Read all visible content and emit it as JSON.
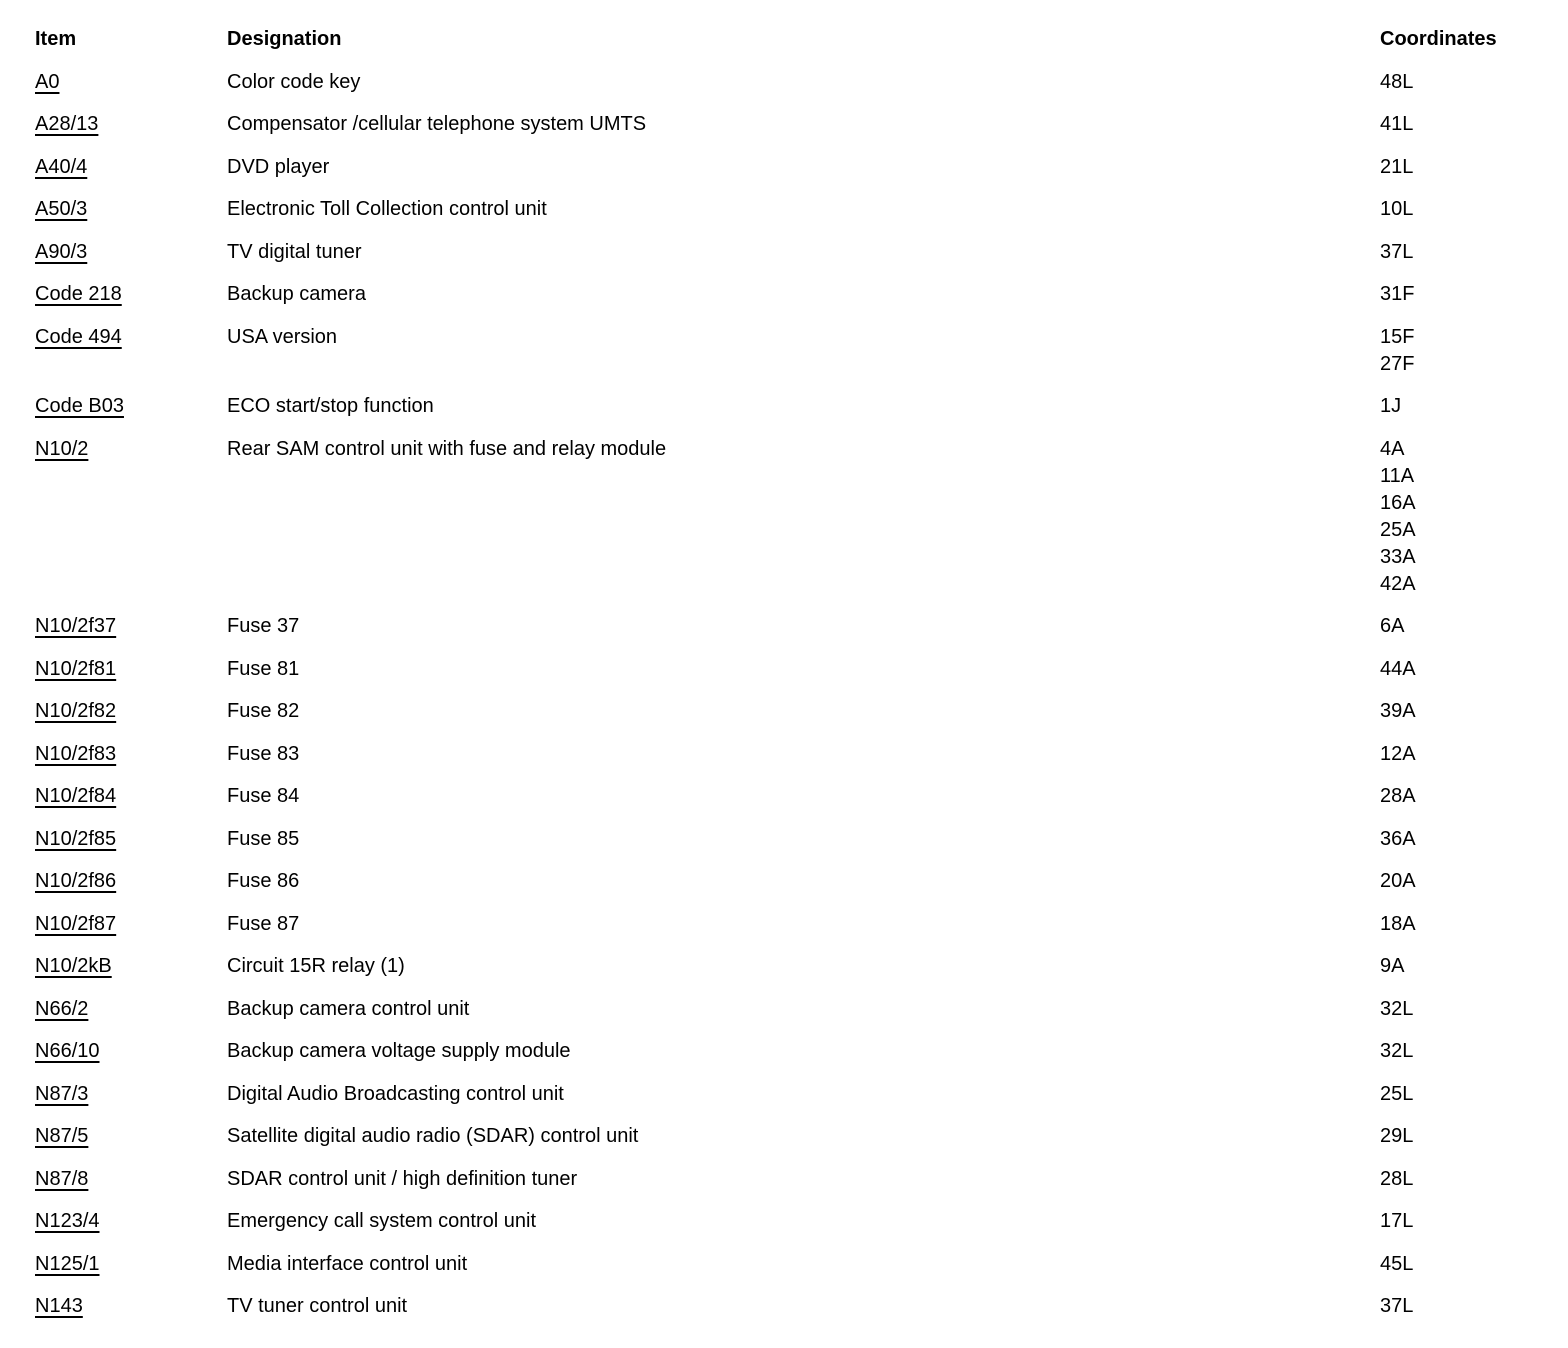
{
  "table": {
    "columns": [
      "Item",
      "Designation",
      "Coordinates"
    ],
    "rows": [
      {
        "item": "A0",
        "designation": "Color code key",
        "coordinates": [
          "48L"
        ]
      },
      {
        "item": "A28/13",
        "designation": "Compensator /cellular telephone system UMTS",
        "coordinates": [
          "41L"
        ]
      },
      {
        "item": "A40/4",
        "designation": "DVD player",
        "coordinates": [
          "21L"
        ]
      },
      {
        "item": "A50/3",
        "designation": "Electronic Toll Collection control unit",
        "coordinates": [
          "10L"
        ]
      },
      {
        "item": "A90/3",
        "designation": "TV digital tuner",
        "coordinates": [
          "37L"
        ]
      },
      {
        "item": "Code 218",
        "designation": "Backup camera",
        "coordinates": [
          "31F"
        ]
      },
      {
        "item": "Code 494",
        "designation": "USA version",
        "coordinates": [
          "15F",
          "27F"
        ]
      },
      {
        "item": "Code B03",
        "designation": "ECO start/stop function",
        "coordinates": [
          "1J"
        ]
      },
      {
        "item": "N10/2",
        "designation": "Rear SAM control unit with fuse and relay module",
        "coordinates": [
          "4A",
          "11A",
          "16A",
          "25A",
          "33A",
          "42A"
        ]
      },
      {
        "item": "N10/2f37",
        "designation": "Fuse 37",
        "coordinates": [
          "6A"
        ]
      },
      {
        "item": "N10/2f81",
        "designation": "Fuse 81",
        "coordinates": [
          "44A"
        ]
      },
      {
        "item": "N10/2f82",
        "designation": "Fuse 82",
        "coordinates": [
          "39A"
        ]
      },
      {
        "item": "N10/2f83",
        "designation": "Fuse 83",
        "coordinates": [
          "12A"
        ]
      },
      {
        "item": "N10/2f84",
        "designation": "Fuse 84",
        "coordinates": [
          "28A"
        ]
      },
      {
        "item": "N10/2f85",
        "designation": "Fuse 85",
        "coordinates": [
          "36A"
        ]
      },
      {
        "item": "N10/2f86",
        "designation": "Fuse 86",
        "coordinates": [
          "20A"
        ]
      },
      {
        "item": "N10/2f87",
        "designation": "Fuse 87",
        "coordinates": [
          "18A"
        ]
      },
      {
        "item": "N10/2kB",
        "designation": "Circuit 15R relay (1)",
        "coordinates": [
          "9A"
        ]
      },
      {
        "item": "N66/2",
        "designation": "Backup camera control unit",
        "coordinates": [
          "32L"
        ]
      },
      {
        "item": "N66/10",
        "designation": "Backup camera voltage supply module",
        "coordinates": [
          "32L"
        ]
      },
      {
        "item": "N87/3",
        "designation": "Digital Audio Broadcasting control unit",
        "coordinates": [
          "25L"
        ]
      },
      {
        "item": "N87/5",
        "designation": "Satellite digital audio radio (SDAR) control unit",
        "coordinates": [
          "29L"
        ]
      },
      {
        "item": "N87/8",
        "designation": "SDAR control unit / high definition tuner",
        "coordinates": [
          "28L"
        ]
      },
      {
        "item": "N123/4",
        "designation": "Emergency call system control unit",
        "coordinates": [
          "17L"
        ]
      },
      {
        "item": "N125/1",
        "designation": "Media interface control unit",
        "coordinates": [
          "45L"
        ]
      },
      {
        "item": "N143",
        "designation": "TV tuner control unit",
        "coordinates": [
          "37L"
        ]
      }
    ]
  }
}
